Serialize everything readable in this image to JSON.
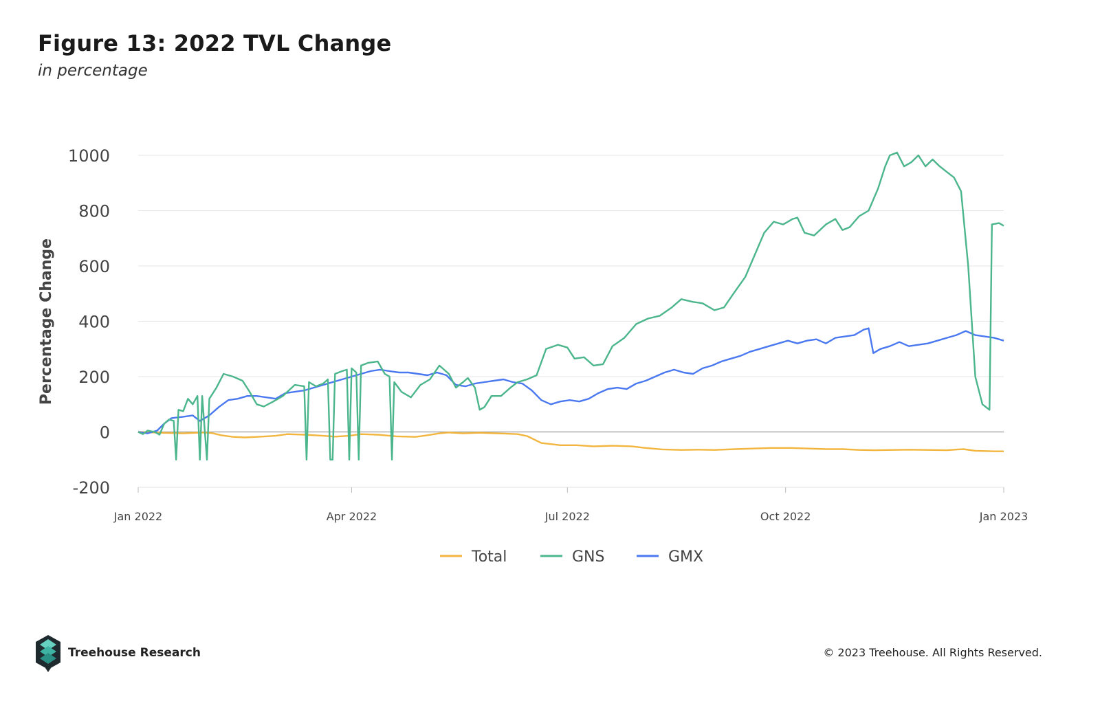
{
  "title": "Figure 13: 2022 TVL Change",
  "subtitle": "in percentage",
  "footer": {
    "brand": "Treehouse Research",
    "copyright": "© 2023 Treehouse. All Rights Reserved."
  },
  "chart_data": {
    "type": "line",
    "ylabel": "Percentage Change",
    "xlabel": "",
    "ylim": [
      -200,
      1000
    ],
    "yticks": [
      -200,
      0,
      200,
      400,
      600,
      800,
      1000
    ],
    "xlim": [
      "2022-01-01",
      "2023-01-01"
    ],
    "xticks": [
      {
        "date": "2022-01-01",
        "label": "Jan 2022"
      },
      {
        "date": "2022-04-01",
        "label": "Apr 2022"
      },
      {
        "date": "2022-07-01",
        "label": "Jul 2022"
      },
      {
        "date": "2022-10-01",
        "label": "Oct 2022"
      },
      {
        "date": "2023-01-01",
        "label": "Jan 2023"
      }
    ],
    "grid": true,
    "legend": "bottom",
    "series": [
      {
        "name": "Total",
        "color": "#f2b63f",
        "points": [
          [
            "2022-01-01",
            0
          ],
          [
            "2022-01-10",
            -3
          ],
          [
            "2022-01-20",
            -5
          ],
          [
            "2022-01-28",
            -2
          ],
          [
            "2022-02-01",
            -4
          ],
          [
            "2022-02-05",
            -12
          ],
          [
            "2022-02-10",
            -18
          ],
          [
            "2022-02-15",
            -20
          ],
          [
            "2022-02-20",
            -18
          ],
          [
            "2022-02-28",
            -14
          ],
          [
            "2022-03-05",
            -8
          ],
          [
            "2022-03-12",
            -10
          ],
          [
            "2022-03-20",
            -14
          ],
          [
            "2022-03-25",
            -17
          ],
          [
            "2022-03-31",
            -14
          ],
          [
            "2022-04-05",
            -8
          ],
          [
            "2022-04-12",
            -10
          ],
          [
            "2022-04-20",
            -16
          ],
          [
            "2022-04-28",
            -18
          ],
          [
            "2022-05-03",
            -12
          ],
          [
            "2022-05-08",
            -5
          ],
          [
            "2022-05-12",
            -2
          ],
          [
            "2022-05-18",
            -5
          ],
          [
            "2022-05-25",
            -3
          ],
          [
            "2022-06-01",
            -5
          ],
          [
            "2022-06-05",
            -6
          ],
          [
            "2022-06-10",
            -8
          ],
          [
            "2022-06-14",
            -15
          ],
          [
            "2022-06-20",
            -40
          ],
          [
            "2022-06-28",
            -48
          ],
          [
            "2022-07-05",
            -48
          ],
          [
            "2022-07-12",
            -52
          ],
          [
            "2022-07-20",
            -50
          ],
          [
            "2022-07-28",
            -52
          ],
          [
            "2022-08-03",
            -58
          ],
          [
            "2022-08-10",
            -63
          ],
          [
            "2022-08-18",
            -65
          ],
          [
            "2022-08-25",
            -64
          ],
          [
            "2022-09-01",
            -65
          ],
          [
            "2022-09-10",
            -62
          ],
          [
            "2022-09-18",
            -60
          ],
          [
            "2022-09-25",
            -58
          ],
          [
            "2022-10-03",
            -58
          ],
          [
            "2022-10-10",
            -60
          ],
          [
            "2022-10-18",
            -62
          ],
          [
            "2022-10-25",
            -62
          ],
          [
            "2022-11-01",
            -65
          ],
          [
            "2022-11-08",
            -66
          ],
          [
            "2022-11-15",
            -65
          ],
          [
            "2022-11-22",
            -64
          ],
          [
            "2022-11-30",
            -65
          ],
          [
            "2022-12-08",
            -66
          ],
          [
            "2022-12-15",
            -62
          ],
          [
            "2022-12-20",
            -68
          ],
          [
            "2022-12-28",
            -70
          ],
          [
            "2023-01-01",
            -70
          ]
        ]
      },
      {
        "name": "GNS",
        "color": "#4bb58c",
        "points": [
          [
            "2022-01-01",
            0
          ],
          [
            "2022-01-03",
            -8
          ],
          [
            "2022-01-05",
            5
          ],
          [
            "2022-01-08",
            0
          ],
          [
            "2022-01-10",
            -10
          ],
          [
            "2022-01-12",
            30
          ],
          [
            "2022-01-14",
            45
          ],
          [
            "2022-01-16",
            40
          ],
          [
            "2022-01-17",
            -100
          ],
          [
            "2022-01-18",
            80
          ],
          [
            "2022-01-20",
            75
          ],
          [
            "2022-01-22",
            120
          ],
          [
            "2022-01-24",
            100
          ],
          [
            "2022-01-26",
            130
          ],
          [
            "2022-01-27",
            -100
          ],
          [
            "2022-01-28",
            130
          ],
          [
            "2022-01-30",
            -100
          ],
          [
            "2022-01-31",
            120
          ],
          [
            "2022-02-03",
            160
          ],
          [
            "2022-02-06",
            210
          ],
          [
            "2022-02-10",
            200
          ],
          [
            "2022-02-14",
            185
          ],
          [
            "2022-02-17",
            145
          ],
          [
            "2022-02-20",
            100
          ],
          [
            "2022-02-23",
            92
          ],
          [
            "2022-02-27",
            110
          ],
          [
            "2022-03-03",
            130
          ],
          [
            "2022-03-08",
            170
          ],
          [
            "2022-03-12",
            165
          ],
          [
            "2022-03-13",
            -100
          ],
          [
            "2022-03-14",
            180
          ],
          [
            "2022-03-17",
            165
          ],
          [
            "2022-03-20",
            175
          ],
          [
            "2022-03-22",
            190
          ],
          [
            "2022-03-23",
            -100
          ],
          [
            "2022-03-24",
            -100
          ],
          [
            "2022-03-25",
            210
          ],
          [
            "2022-03-28",
            220
          ],
          [
            "2022-03-30",
            225
          ],
          [
            "2022-03-31",
            -100
          ],
          [
            "2022-04-01",
            230
          ],
          [
            "2022-04-03",
            215
          ],
          [
            "2022-04-04",
            -100
          ],
          [
            "2022-04-05",
            240
          ],
          [
            "2022-04-08",
            250
          ],
          [
            "2022-04-12",
            255
          ],
          [
            "2022-04-15",
            210
          ],
          [
            "2022-04-17",
            200
          ],
          [
            "2022-04-18",
            -100
          ],
          [
            "2022-04-19",
            180
          ],
          [
            "2022-04-22",
            145
          ],
          [
            "2022-04-26",
            125
          ],
          [
            "2022-04-30",
            170
          ],
          [
            "2022-05-04",
            190
          ],
          [
            "2022-05-08",
            240
          ],
          [
            "2022-05-12",
            210
          ],
          [
            "2022-05-15",
            160
          ],
          [
            "2022-05-18",
            180
          ],
          [
            "2022-05-20",
            195
          ],
          [
            "2022-05-23",
            160
          ],
          [
            "2022-05-25",
            80
          ],
          [
            "2022-05-27",
            90
          ],
          [
            "2022-05-30",
            130
          ],
          [
            "2022-06-03",
            130
          ],
          [
            "2022-06-07",
            160
          ],
          [
            "2022-06-10",
            180
          ],
          [
            "2022-06-14",
            190
          ],
          [
            "2022-06-18",
            205
          ],
          [
            "2022-06-22",
            300
          ],
          [
            "2022-06-27",
            315
          ],
          [
            "2022-07-01",
            305
          ],
          [
            "2022-07-04",
            265
          ],
          [
            "2022-07-08",
            270
          ],
          [
            "2022-07-12",
            240
          ],
          [
            "2022-07-16",
            245
          ],
          [
            "2022-07-20",
            310
          ],
          [
            "2022-07-25",
            340
          ],
          [
            "2022-07-30",
            390
          ],
          [
            "2022-08-04",
            410
          ],
          [
            "2022-08-09",
            420
          ],
          [
            "2022-08-14",
            450
          ],
          [
            "2022-08-18",
            480
          ],
          [
            "2022-08-23",
            470
          ],
          [
            "2022-08-27",
            465
          ],
          [
            "2022-09-01",
            440
          ],
          [
            "2022-09-05",
            450
          ],
          [
            "2022-09-09",
            500
          ],
          [
            "2022-09-14",
            560
          ],
          [
            "2022-09-18",
            640
          ],
          [
            "2022-09-22",
            720
          ],
          [
            "2022-09-26",
            760
          ],
          [
            "2022-09-30",
            750
          ],
          [
            "2022-10-04",
            770
          ],
          [
            "2022-10-06",
            775
          ],
          [
            "2022-10-09",
            720
          ],
          [
            "2022-10-13",
            710
          ],
          [
            "2022-10-18",
            750
          ],
          [
            "2022-10-22",
            770
          ],
          [
            "2022-10-25",
            730
          ],
          [
            "2022-10-28",
            740
          ],
          [
            "2022-11-01",
            780
          ],
          [
            "2022-11-05",
            800
          ],
          [
            "2022-11-09",
            880
          ],
          [
            "2022-11-12",
            960
          ],
          [
            "2022-11-14",
            1000
          ],
          [
            "2022-11-17",
            1010
          ],
          [
            "2022-11-20",
            960
          ],
          [
            "2022-11-23",
            975
          ],
          [
            "2022-11-26",
            1000
          ],
          [
            "2022-11-29",
            960
          ],
          [
            "2022-12-02",
            985
          ],
          [
            "2022-12-05",
            960
          ],
          [
            "2022-12-08",
            940
          ],
          [
            "2022-12-11",
            920
          ],
          [
            "2022-12-14",
            870
          ],
          [
            "2022-12-17",
            600
          ],
          [
            "2022-12-20",
            200
          ],
          [
            "2022-12-23",
            100
          ],
          [
            "2022-12-26",
            80
          ],
          [
            "2022-12-27",
            750
          ],
          [
            "2022-12-30",
            755
          ],
          [
            "2023-01-01",
            745
          ]
        ]
      },
      {
        "name": "GMX",
        "color": "#4a78f0",
        "points": [
          [
            "2022-01-01",
            0
          ],
          [
            "2022-01-05",
            -5
          ],
          [
            "2022-01-09",
            5
          ],
          [
            "2022-01-12",
            30
          ],
          [
            "2022-01-15",
            50
          ],
          [
            "2022-01-20",
            55
          ],
          [
            "2022-01-24",
            60
          ],
          [
            "2022-01-27",
            40
          ],
          [
            "2022-01-31",
            60
          ],
          [
            "2022-02-04",
            90
          ],
          [
            "2022-02-08",
            115
          ],
          [
            "2022-02-12",
            120
          ],
          [
            "2022-02-16",
            130
          ],
          [
            "2022-02-20",
            130
          ],
          [
            "2022-02-24",
            125
          ],
          [
            "2022-02-28",
            120
          ],
          [
            "2022-03-04",
            140
          ],
          [
            "2022-03-08",
            145
          ],
          [
            "2022-03-12",
            150
          ],
          [
            "2022-03-16",
            160
          ],
          [
            "2022-03-20",
            170
          ],
          [
            "2022-03-24",
            180
          ],
          [
            "2022-03-28",
            190
          ],
          [
            "2022-04-01",
            200
          ],
          [
            "2022-04-05",
            210
          ],
          [
            "2022-04-09",
            220
          ],
          [
            "2022-04-13",
            225
          ],
          [
            "2022-04-17",
            220
          ],
          [
            "2022-04-21",
            215
          ],
          [
            "2022-04-25",
            215
          ],
          [
            "2022-04-29",
            210
          ],
          [
            "2022-05-03",
            205
          ],
          [
            "2022-05-07",
            215
          ],
          [
            "2022-05-11",
            205
          ],
          [
            "2022-05-15",
            170
          ],
          [
            "2022-05-19",
            165
          ],
          [
            "2022-05-23",
            175
          ],
          [
            "2022-05-27",
            180
          ],
          [
            "2022-05-31",
            185
          ],
          [
            "2022-06-04",
            190
          ],
          [
            "2022-06-08",
            180
          ],
          [
            "2022-06-12",
            175
          ],
          [
            "2022-06-16",
            150
          ],
          [
            "2022-06-20",
            115
          ],
          [
            "2022-06-24",
            100
          ],
          [
            "2022-06-28",
            110
          ],
          [
            "2022-07-02",
            115
          ],
          [
            "2022-07-06",
            110
          ],
          [
            "2022-07-10",
            120
          ],
          [
            "2022-07-14",
            140
          ],
          [
            "2022-07-18",
            155
          ],
          [
            "2022-07-22",
            160
          ],
          [
            "2022-07-26",
            155
          ],
          [
            "2022-07-30",
            175
          ],
          [
            "2022-08-03",
            185
          ],
          [
            "2022-08-07",
            200
          ],
          [
            "2022-08-11",
            215
          ],
          [
            "2022-08-15",
            225
          ],
          [
            "2022-08-19",
            215
          ],
          [
            "2022-08-23",
            210
          ],
          [
            "2022-08-27",
            230
          ],
          [
            "2022-08-31",
            240
          ],
          [
            "2022-09-04",
            255
          ],
          [
            "2022-09-08",
            265
          ],
          [
            "2022-09-12",
            275
          ],
          [
            "2022-09-16",
            290
          ],
          [
            "2022-09-20",
            300
          ],
          [
            "2022-09-24",
            310
          ],
          [
            "2022-09-28",
            320
          ],
          [
            "2022-10-02",
            330
          ],
          [
            "2022-10-06",
            320
          ],
          [
            "2022-10-10",
            330
          ],
          [
            "2022-10-14",
            335
          ],
          [
            "2022-10-18",
            320
          ],
          [
            "2022-10-22",
            340
          ],
          [
            "2022-10-26",
            345
          ],
          [
            "2022-10-30",
            350
          ],
          [
            "2022-11-03",
            370
          ],
          [
            "2022-11-05",
            375
          ],
          [
            "2022-11-07",
            285
          ],
          [
            "2022-11-10",
            300
          ],
          [
            "2022-11-14",
            310
          ],
          [
            "2022-11-18",
            325
          ],
          [
            "2022-11-22",
            310
          ],
          [
            "2022-11-26",
            315
          ],
          [
            "2022-11-30",
            320
          ],
          [
            "2022-12-04",
            330
          ],
          [
            "2022-12-08",
            340
          ],
          [
            "2022-12-12",
            350
          ],
          [
            "2022-12-16",
            365
          ],
          [
            "2022-12-20",
            350
          ],
          [
            "2022-12-24",
            345
          ],
          [
            "2022-12-28",
            340
          ],
          [
            "2023-01-01",
            330
          ]
        ]
      }
    ]
  }
}
